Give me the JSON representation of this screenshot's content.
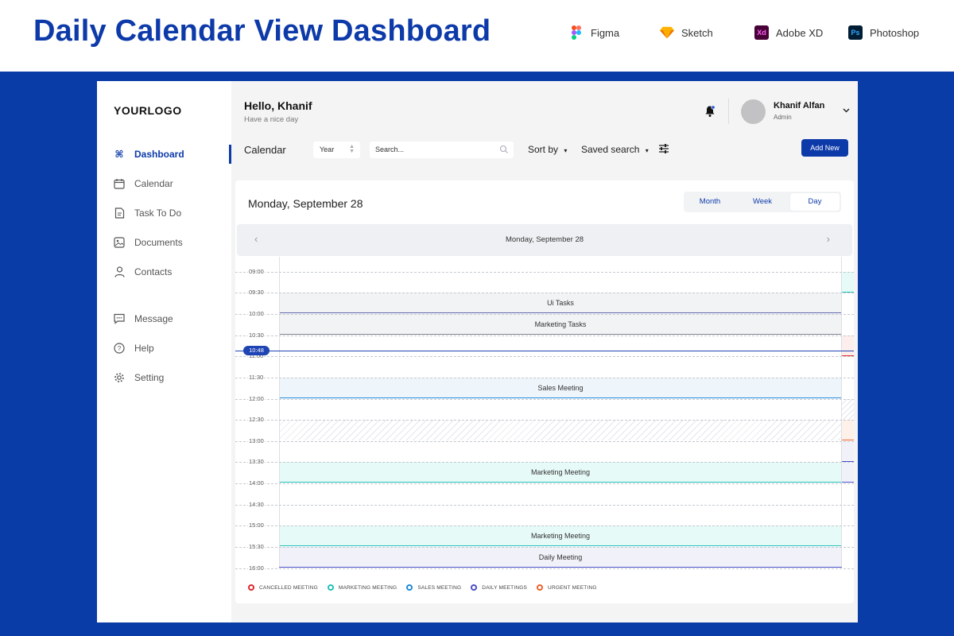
{
  "banner": {
    "title": "Daily Calendar View Dashboard",
    "tools": [
      {
        "label": "Figma",
        "icon": "figma-icon"
      },
      {
        "label": "Sketch",
        "icon": "sketch-icon"
      },
      {
        "label": "Adobe XD",
        "icon": "adobe-xd-icon",
        "badge": "Xd"
      },
      {
        "label": "Photoshop",
        "icon": "photoshop-icon",
        "badge": "Ps"
      }
    ]
  },
  "sidebar": {
    "logo": "YOURLOGO",
    "items": [
      {
        "label": "Dashboard",
        "icon": "command-icon",
        "active": true
      },
      {
        "label": "Calendar",
        "icon": "calendar-icon"
      },
      {
        "label": "Task To Do",
        "icon": "document-icon"
      },
      {
        "label": "Documents",
        "icon": "image-icon"
      },
      {
        "label": "Contacts",
        "icon": "user-icon"
      },
      {
        "label": "Message",
        "icon": "message-icon"
      },
      {
        "label": "Help",
        "icon": "help-icon"
      },
      {
        "label": "Setting",
        "icon": "gear-icon"
      }
    ]
  },
  "header": {
    "greeting": "Hello, Khanif",
    "subtitle": "Have a nice day",
    "user_name": "Khanif Alfan",
    "user_role": "Admin"
  },
  "toolbar": {
    "title": "Calendar",
    "year_select": "Year",
    "search_placeholder": "Search...",
    "sort_by": "Sort by",
    "saved_search": "Saved search",
    "add_new": "Add New"
  },
  "calendar": {
    "date_title": "Monday, September 28",
    "views": [
      "Month",
      "Week",
      "Day"
    ],
    "active_view": "Day",
    "day_label": "Monday, September 28",
    "now_label": "10:48",
    "times": [
      "09:00",
      "09:30",
      "10:00",
      "10:30",
      "11:00",
      "11:30",
      "12:00",
      "12:30",
      "13:00",
      "13:30",
      "14:00",
      "14:30",
      "15:00",
      "15:30",
      "16:00"
    ],
    "events": [
      {
        "title": "Ui Tasks",
        "type": "daily"
      },
      {
        "title": "Marketing Tasks",
        "type": "neutral"
      },
      {
        "title": "Sales Meeting",
        "type": "sales"
      },
      {
        "title": "Marketing Meeting",
        "type": "marketing"
      },
      {
        "title": "Marketing Meeting",
        "type": "marketing"
      },
      {
        "title": "Daily Meeting",
        "type": "daily"
      }
    ],
    "legend": [
      {
        "label": "CANCELLED MEETING",
        "color": "#e0262b"
      },
      {
        "label": "MARKETING MEETING",
        "color": "#22c1b8"
      },
      {
        "label": "SALES MEETING",
        "color": "#1e88d9"
      },
      {
        "label": "DAILY MEETINGS",
        "color": "#4b4fc7"
      },
      {
        "label": "URGENT MEETING",
        "color": "#f0612b"
      }
    ]
  },
  "colors": {
    "brand": "#0d3aa9",
    "background": "#0a3ca8"
  }
}
